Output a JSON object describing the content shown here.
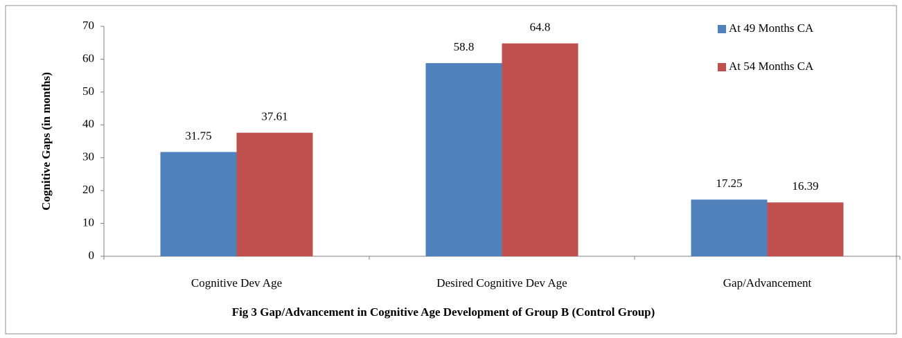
{
  "chart_data": {
    "type": "bar",
    "title": "Fig 3  Gap/Advancement in Cognitive Age Development of Group B (Control Group)",
    "y_label": "Cognitive Gaps (in months)",
    "categories": [
      "Cognitive Dev Age",
      "Desired Cognitive Dev Age",
      "Gap/Advancement"
    ],
    "series": [
      {
        "name": "At 49 Months CA",
        "color": "#4f81bd",
        "values": [
          31.75,
          58.8,
          17.25
        ]
      },
      {
        "name": "At 54 Months CA",
        "color": "#c0504d",
        "values": [
          37.61,
          64.8,
          16.39
        ]
      }
    ],
    "ylim": [
      0,
      70
    ],
    "yticks": [
      0,
      10,
      20,
      30,
      40,
      50,
      60,
      70
    ],
    "grid": false,
    "legend": "top-right"
  }
}
